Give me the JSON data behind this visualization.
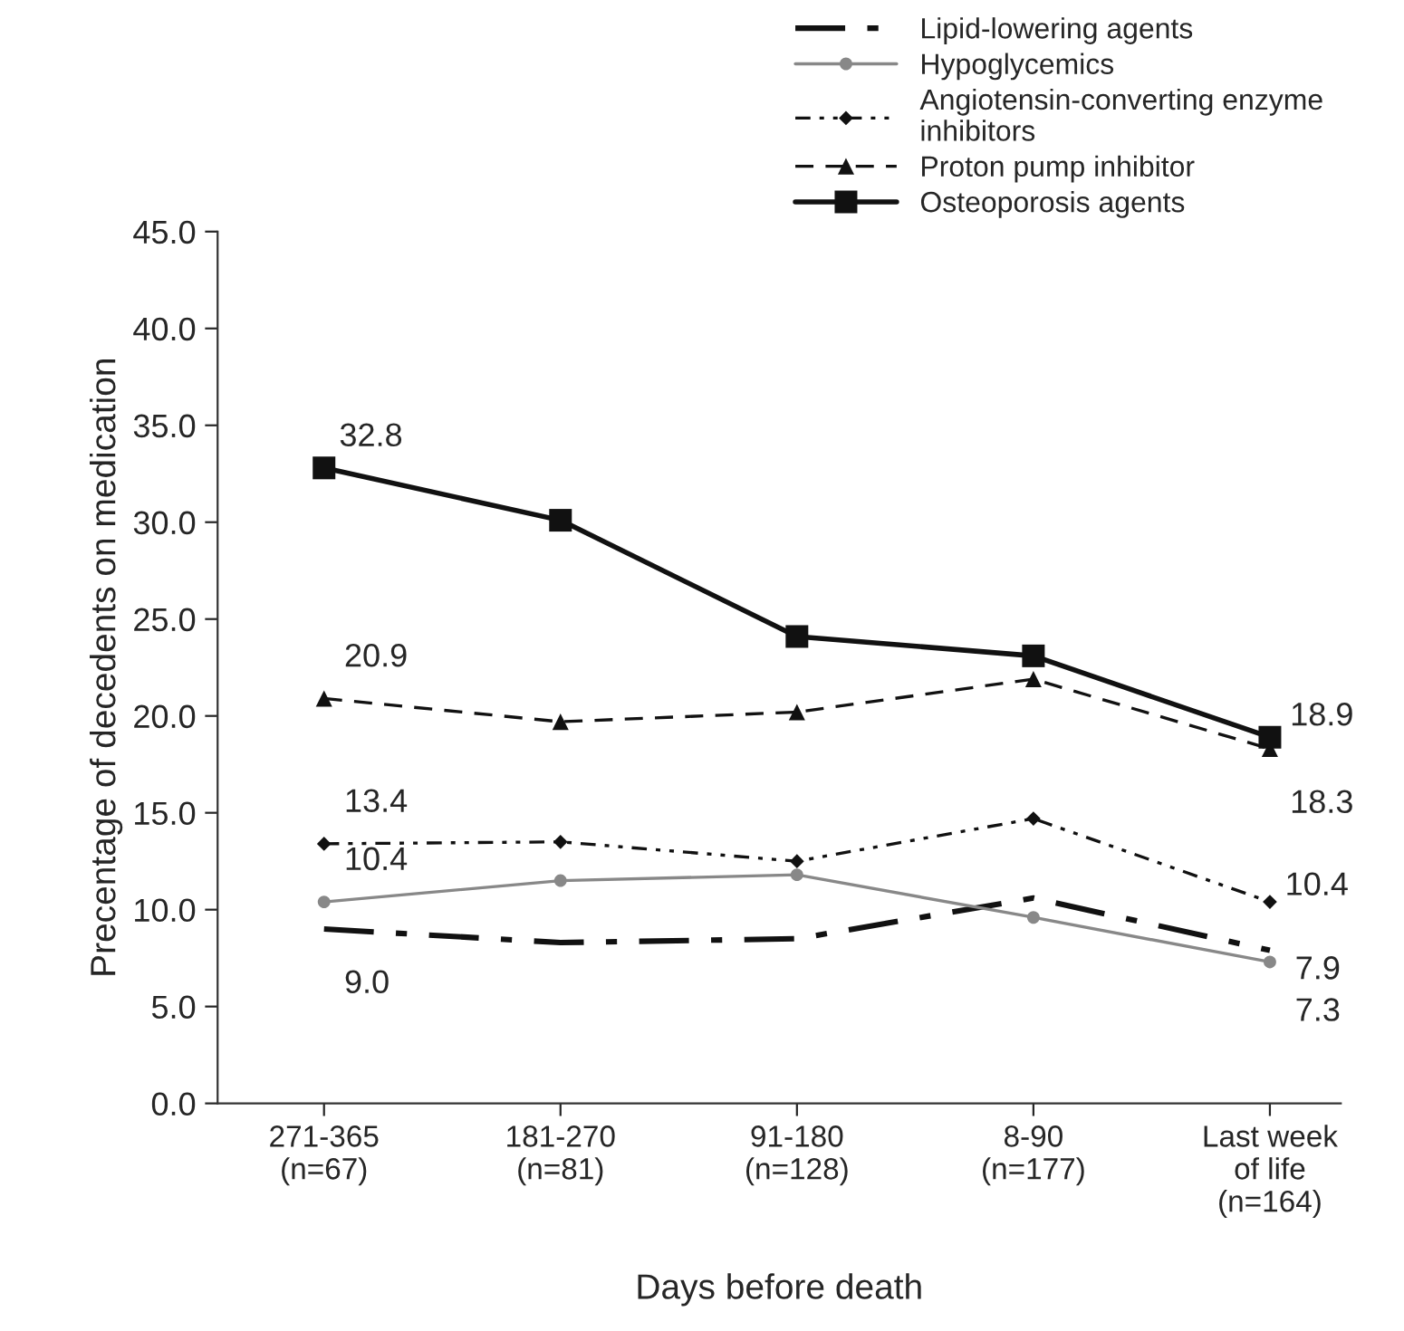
{
  "chart_data": {
    "type": "line",
    "xlabel": "Days before death",
    "ylabel": "Precentage of decedents on medication",
    "categories": [
      "271-365\n(n=67)",
      "181-270\n(n=81)",
      "91-180\n(n=128)",
      "8-90\n(n=177)",
      "Last week\nof life\n(n=164)"
    ],
    "ylim": [
      0,
      45
    ],
    "yticks": [
      {
        "value": 0,
        "label": "0.0"
      },
      {
        "value": 5,
        "label": "5.0"
      },
      {
        "value": 10,
        "label": "10.0"
      },
      {
        "value": 15,
        "label": "15.0"
      },
      {
        "value": 20,
        "label": "20.0"
      },
      {
        "value": 25,
        "label": "25.0"
      },
      {
        "value": 30,
        "label": "30.0"
      },
      {
        "value": 35,
        "label": "35.0"
      },
      {
        "value": 40,
        "label": "40.0"
      },
      {
        "value": 45,
        "label": "45.0"
      }
    ],
    "grid": false,
    "legend": "top right",
    "series": [
      {
        "name": "Lipid-lowering agents",
        "color": "#111111",
        "marker": "none",
        "line_style": "dashdot",
        "values": [
          9.0,
          8.3,
          8.5,
          10.6,
          7.9
        ],
        "value_labels": [
          "9.0",
          null,
          null,
          null,
          "7.9"
        ]
      },
      {
        "name": "Hypoglycemics",
        "color": "#888888",
        "marker": "circle",
        "line_style": "solid",
        "values": [
          10.4,
          11.5,
          11.8,
          9.6,
          7.3
        ],
        "value_labels": [
          "10.4",
          null,
          null,
          null,
          "7.3"
        ]
      },
      {
        "name": "Angiotensin-converting enzyme\ninhibitors",
        "color": "#111111",
        "marker": "diamond",
        "line_style": "dashdotdot",
        "values": [
          13.4,
          13.5,
          12.5,
          14.7,
          10.4
        ],
        "value_labels": [
          "13.4",
          null,
          null,
          null,
          "10.4"
        ]
      },
      {
        "name": "Proton pump inhibitor",
        "color": "#111111",
        "marker": "triangle",
        "line_style": "dashed",
        "values": [
          20.9,
          19.7,
          20.2,
          21.9,
          18.3
        ],
        "value_labels": [
          "20.9",
          null,
          null,
          null,
          "18.3"
        ]
      },
      {
        "name": "Osteoporosis agents",
        "color": "#111111",
        "marker": "square",
        "line_style": "solid",
        "values": [
          32.8,
          30.1,
          24.1,
          23.1,
          18.9
        ],
        "value_labels": [
          "32.8",
          null,
          null,
          null,
          "18.9"
        ]
      }
    ]
  }
}
